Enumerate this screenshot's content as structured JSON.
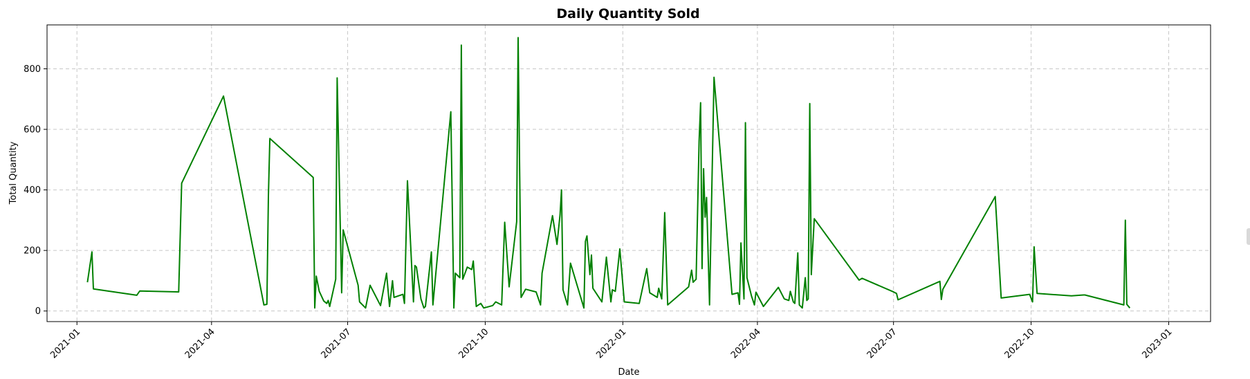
{
  "chart_data": {
    "type": "line",
    "title": "Daily Quantity Sold",
    "xlabel": "Date",
    "ylabel": "Total Quantity",
    "x_ticks": [
      "2021-01",
      "2021-04",
      "2021-07",
      "2021-10",
      "2022-01",
      "2022-04",
      "2022-07",
      "2022-10",
      "2023-01"
    ],
    "y_ticks": [
      "0",
      "200",
      "400",
      "600",
      "800"
    ],
    "xlim": [
      "2020-12-12",
      "2023-01-29"
    ],
    "ylim": [
      -35,
      945
    ],
    "grid": true,
    "series": [
      {
        "color": "#008000",
        "points": [
          [
            "2021-01-08",
            95
          ],
          [
            "2021-01-11",
            195
          ],
          [
            "2021-01-12",
            73
          ],
          [
            "2021-02-10",
            52
          ],
          [
            "2021-02-12",
            66
          ],
          [
            "2021-03-10",
            63
          ],
          [
            "2021-03-12",
            422
          ],
          [
            "2021-04-09",
            710
          ],
          [
            "2021-05-06",
            20
          ],
          [
            "2021-05-08",
            22
          ],
          [
            "2021-05-09",
            380
          ],
          [
            "2021-05-10",
            570
          ],
          [
            "2021-06-08",
            441
          ],
          [
            "2021-06-09",
            10
          ],
          [
            "2021-06-10",
            115
          ],
          [
            "2021-06-12",
            65
          ],
          [
            "2021-06-15",
            33
          ],
          [
            "2021-06-17",
            25
          ],
          [
            "2021-06-18",
            35
          ],
          [
            "2021-06-19",
            15
          ],
          [
            "2021-06-23",
            105
          ],
          [
            "2021-06-24",
            770
          ],
          [
            "2021-06-27",
            60
          ],
          [
            "2021-06-28",
            268
          ],
          [
            "2021-07-08",
            85
          ],
          [
            "2021-07-09",
            30
          ],
          [
            "2021-07-13",
            10
          ],
          [
            "2021-07-16",
            85
          ],
          [
            "2021-07-23",
            18
          ],
          [
            "2021-07-27",
            125
          ],
          [
            "2021-07-29",
            15
          ],
          [
            "2021-07-31",
            100
          ],
          [
            "2021-08-01",
            45
          ],
          [
            "2021-08-07",
            55
          ],
          [
            "2021-08-08",
            25
          ],
          [
            "2021-08-10",
            430
          ],
          [
            "2021-08-14",
            30
          ],
          [
            "2021-08-15",
            150
          ],
          [
            "2021-08-16",
            145
          ],
          [
            "2021-08-19",
            40
          ],
          [
            "2021-08-21",
            10
          ],
          [
            "2021-08-22",
            15
          ],
          [
            "2021-08-26",
            195
          ],
          [
            "2021-08-27",
            20
          ],
          [
            "2021-09-08",
            658
          ],
          [
            "2021-09-10",
            10
          ],
          [
            "2021-09-11",
            125
          ],
          [
            "2021-09-14",
            110
          ],
          [
            "2021-09-15",
            878
          ],
          [
            "2021-09-16",
            105
          ],
          [
            "2021-09-19",
            145
          ],
          [
            "2021-09-22",
            137
          ],
          [
            "2021-09-23",
            165
          ],
          [
            "2021-09-25",
            15
          ],
          [
            "2021-09-28",
            25
          ],
          [
            "2021-09-30",
            10
          ],
          [
            "2021-10-06",
            18
          ],
          [
            "2021-10-08",
            30
          ],
          [
            "2021-10-12",
            20
          ],
          [
            "2021-10-14",
            293
          ],
          [
            "2021-10-17",
            80
          ],
          [
            "2021-10-22",
            295
          ],
          [
            "2021-10-23",
            903
          ],
          [
            "2021-10-25",
            45
          ],
          [
            "2021-10-28",
            72
          ],
          [
            "2021-11-04",
            63
          ],
          [
            "2021-11-07",
            20
          ],
          [
            "2021-11-08",
            125
          ],
          [
            "2021-11-15",
            315
          ],
          [
            "2021-11-18",
            220
          ],
          [
            "2021-11-20",
            318
          ],
          [
            "2021-11-21",
            400
          ],
          [
            "2021-11-22",
            70
          ],
          [
            "2021-11-25",
            20
          ],
          [
            "2021-11-27",
            158
          ],
          [
            "2021-12-06",
            10
          ],
          [
            "2021-12-07",
            230
          ],
          [
            "2021-12-08",
            248
          ],
          [
            "2021-12-10",
            120
          ],
          [
            "2021-12-11",
            185
          ],
          [
            "2021-12-12",
            75
          ],
          [
            "2021-12-18",
            30
          ],
          [
            "2021-12-21",
            178
          ],
          [
            "2021-12-24",
            30
          ],
          [
            "2021-12-25",
            70
          ],
          [
            "2021-12-27",
            65
          ],
          [
            "2021-12-30",
            205
          ],
          [
            "2022-01-02",
            30
          ],
          [
            "2022-01-12",
            25
          ],
          [
            "2022-01-17",
            140
          ],
          [
            "2022-01-19",
            60
          ],
          [
            "2022-01-24",
            45
          ],
          [
            "2022-01-25",
            75
          ],
          [
            "2022-01-27",
            40
          ],
          [
            "2022-01-29",
            325
          ],
          [
            "2022-01-31",
            20
          ],
          [
            "2022-02-14",
            80
          ],
          [
            "2022-02-16",
            135
          ],
          [
            "2022-02-17",
            95
          ],
          [
            "2022-02-19",
            105
          ],
          [
            "2022-02-21",
            560
          ],
          [
            "2022-02-22",
            688
          ],
          [
            "2022-02-23",
            140
          ],
          [
            "2022-02-24",
            470
          ],
          [
            "2022-02-25",
            310
          ],
          [
            "2022-02-26",
            375
          ],
          [
            "2022-02-28",
            20
          ],
          [
            "2022-03-03",
            772
          ],
          [
            "2022-03-15",
            55
          ],
          [
            "2022-03-19",
            60
          ],
          [
            "2022-03-20",
            22
          ],
          [
            "2022-03-21",
            225
          ],
          [
            "2022-03-23",
            40
          ],
          [
            "2022-03-24",
            622
          ],
          [
            "2022-03-25",
            110
          ],
          [
            "2022-03-28",
            50
          ],
          [
            "2022-03-30",
            20
          ],
          [
            "2022-03-31",
            62
          ],
          [
            "2022-04-05",
            15
          ],
          [
            "2022-04-15",
            78
          ],
          [
            "2022-04-19",
            40
          ],
          [
            "2022-04-22",
            35
          ],
          [
            "2022-04-23",
            65
          ],
          [
            "2022-04-25",
            30
          ],
          [
            "2022-04-26",
            25
          ],
          [
            "2022-04-28",
            192
          ],
          [
            "2022-04-29",
            20
          ],
          [
            "2022-05-01",
            10
          ],
          [
            "2022-05-03",
            110
          ],
          [
            "2022-05-04",
            35
          ],
          [
            "2022-05-05",
            40
          ],
          [
            "2022-05-06",
            685
          ],
          [
            "2022-05-07",
            120
          ],
          [
            "2022-05-09",
            305
          ],
          [
            "2022-06-08",
            102
          ],
          [
            "2022-06-10",
            108
          ],
          [
            "2022-07-01",
            63
          ],
          [
            "2022-07-03",
            58
          ],
          [
            "2022-07-04",
            37
          ],
          [
            "2022-08-01",
            98
          ],
          [
            "2022-08-02",
            38
          ],
          [
            "2022-08-03",
            72
          ],
          [
            "2022-09-07",
            378
          ],
          [
            "2022-09-11",
            43
          ],
          [
            "2022-09-30",
            55
          ],
          [
            "2022-10-02",
            30
          ],
          [
            "2022-10-03",
            212
          ],
          [
            "2022-10-05",
            58
          ],
          [
            "2022-10-28",
            50
          ],
          [
            "2022-11-05",
            53
          ],
          [
            "2022-11-06",
            53
          ],
          [
            "2022-12-02",
            20
          ],
          [
            "2022-12-03",
            300
          ],
          [
            "2022-12-04",
            22
          ],
          [
            "2022-12-06",
            10
          ]
        ]
      }
    ]
  }
}
